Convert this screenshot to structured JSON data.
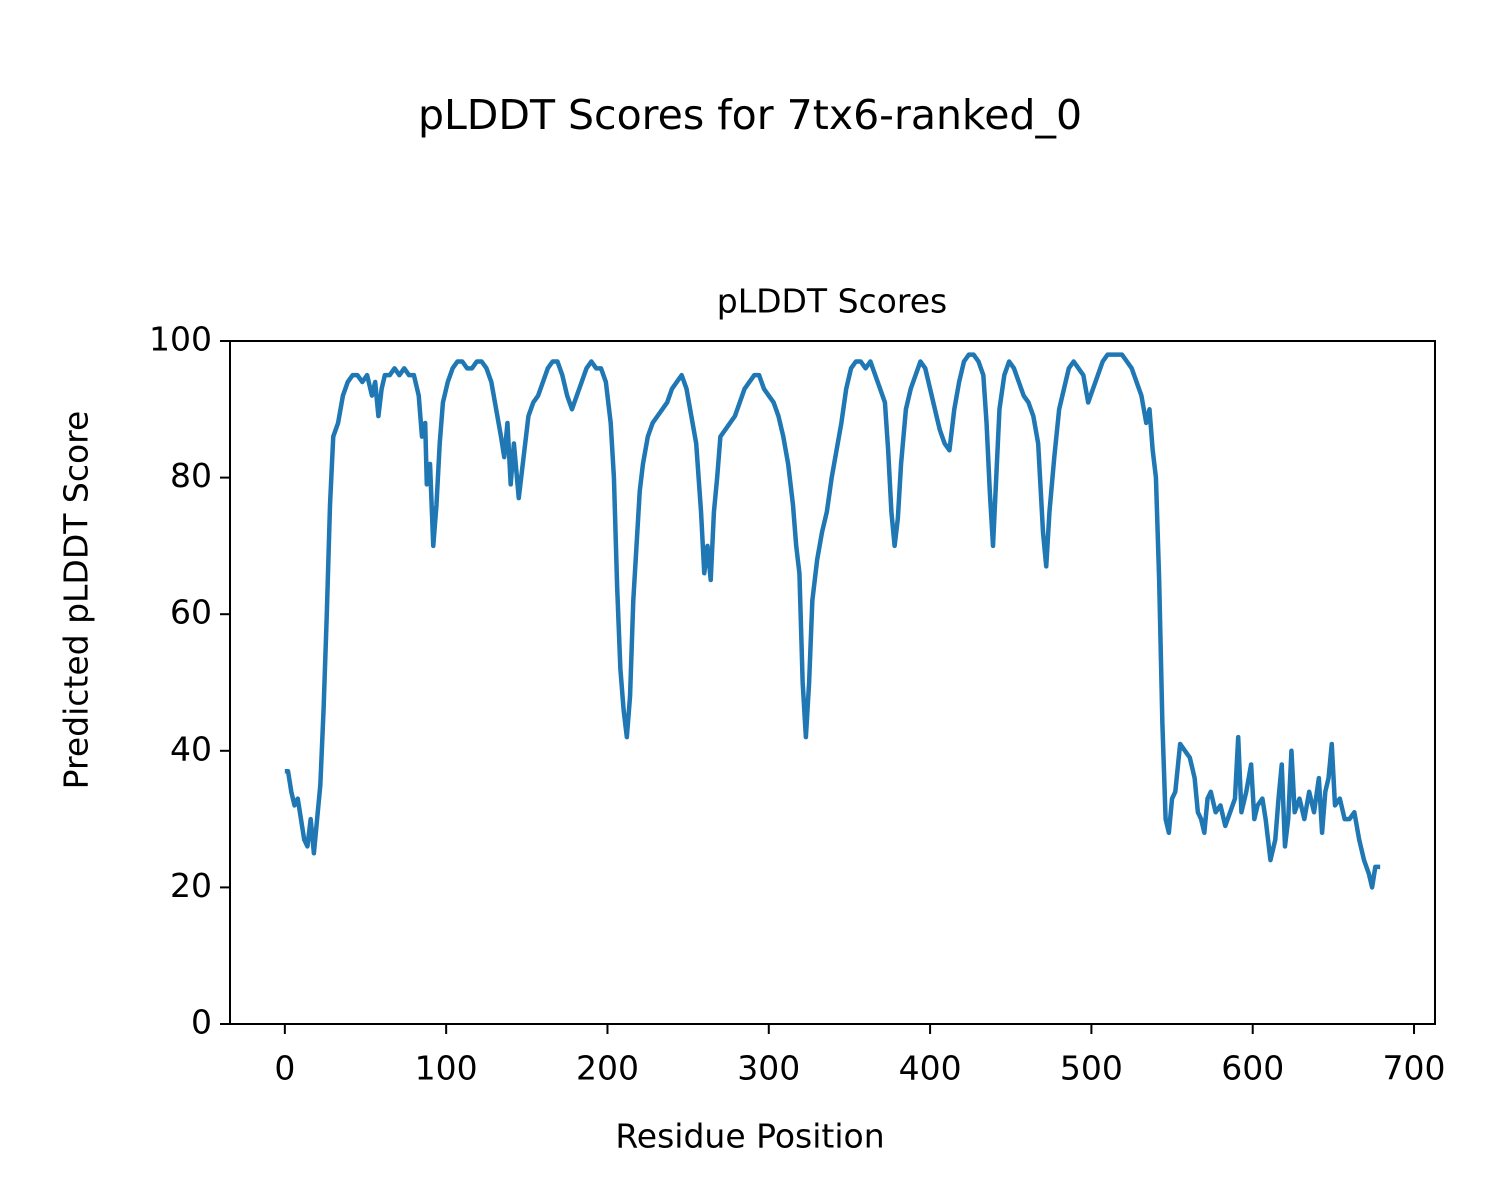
{
  "chart_data": {
    "type": "line",
    "suptitle": "pLDDT Scores for 7tx6-ranked_0",
    "title": "pLDDT Scores",
    "xlabel": "Residue Position",
    "ylabel": "Predicted pLDDT Score",
    "xlim": [
      -34,
      713
    ],
    "ylim": [
      0,
      100
    ],
    "xticks": [
      0,
      100,
      200,
      300,
      400,
      500,
      600,
      700
    ],
    "yticks": [
      0,
      20,
      40,
      60,
      80,
      100
    ],
    "grid": false,
    "series": [
      {
        "name": "pLDDT",
        "color": "#1f77b4",
        "x": [
          0,
          2,
          4,
          6,
          8,
          10,
          12,
          14,
          16,
          18,
          20,
          22,
          24,
          26,
          28,
          30,
          33,
          36,
          39,
          42,
          45,
          48,
          51,
          54,
          56,
          58,
          60,
          62,
          65,
          68,
          71,
          74,
          77,
          80,
          83,
          85,
          87,
          88,
          90,
          92,
          94,
          96,
          98,
          101,
          104,
          107,
          110,
          113,
          116,
          119,
          122,
          125,
          128,
          131,
          134,
          136,
          138,
          140,
          142,
          145,
          148,
          151,
          154,
          157,
          160,
          163,
          166,
          169,
          172,
          175,
          178,
          181,
          184,
          187,
          190,
          193,
          196,
          199,
          202,
          204,
          206,
          208,
          210,
          212,
          214,
          216,
          218,
          220,
          222,
          225,
          228,
          231,
          234,
          237,
          240,
          243,
          246,
          249,
          252,
          255,
          258,
          260,
          262,
          264,
          266,
          268,
          270,
          273,
          276,
          279,
          282,
          285,
          288,
          291,
          294,
          297,
          300,
          303,
          306,
          309,
          312,
          315,
          317,
          319,
          321,
          323,
          325,
          327,
          330,
          333,
          336,
          339,
          342,
          345,
          348,
          351,
          354,
          357,
          360,
          363,
          366,
          369,
          372,
          374,
          376,
          378,
          380,
          382,
          385,
          388,
          391,
          394,
          397,
          400,
          403,
          406,
          409,
          412,
          415,
          418,
          421,
          424,
          427,
          430,
          433,
          435,
          437,
          439,
          441,
          443,
          446,
          449,
          452,
          455,
          458,
          461,
          464,
          467,
          470,
          472,
          474,
          477,
          480,
          483,
          486,
          489,
          492,
          495,
          498,
          501,
          504,
          507,
          510,
          513,
          516,
          519,
          522,
          525,
          528,
          531,
          534,
          536,
          538,
          540,
          542,
          544,
          546,
          548,
          550,
          552,
          555,
          558,
          561,
          564,
          566,
          568,
          570,
          572,
          574,
          577,
          580,
          583,
          586,
          589,
          591,
          593,
          596,
          599,
          601,
          603,
          606,
          608,
          611,
          614,
          616,
          618,
          620,
          622,
          624,
          626,
          629,
          632,
          635,
          638,
          641,
          643,
          645,
          647,
          649,
          651,
          654,
          657,
          660,
          663,
          666,
          669,
          672,
          674,
          676,
          679
        ],
        "values": [
          37,
          37,
          34,
          32,
          33,
          30,
          27,
          26,
          30,
          25,
          30,
          35,
          46,
          60,
          76,
          86,
          88,
          92,
          94,
          95,
          95,
          94,
          95,
          92,
          94,
          89,
          93,
          95,
          95,
          96,
          95,
          96,
          95,
          95,
          92,
          86,
          88,
          79,
          82,
          70,
          76,
          85,
          91,
          94,
          96,
          97,
          97,
          96,
          96,
          97,
          97,
          96,
          94,
          90,
          86,
          83,
          88,
          79,
          85,
          77,
          83,
          89,
          91,
          92,
          94,
          96,
          97,
          97,
          95,
          92,
          90,
          92,
          94,
          96,
          97,
          96,
          96,
          94,
          88,
          80,
          64,
          52,
          46,
          42,
          48,
          62,
          70,
          78,
          82,
          86,
          88,
          89,
          90,
          91,
          93,
          94,
          95,
          93,
          89,
          85,
          75,
          66,
          70,
          65,
          75,
          80,
          86,
          87,
          88,
          89,
          91,
          93,
          94,
          95,
          95,
          93,
          92,
          91,
          89,
          86,
          82,
          76,
          70,
          66,
          50,
          42,
          50,
          62,
          68,
          72,
          75,
          80,
          84,
          88,
          93,
          96,
          97,
          97,
          96,
          97,
          95,
          93,
          91,
          84,
          75,
          70,
          74,
          82,
          90,
          93,
          95,
          97,
          96,
          93,
          90,
          87,
          85,
          84,
          90,
          94,
          97,
          98,
          98,
          97,
          95,
          88,
          78,
          70,
          80,
          90,
          95,
          97,
          96,
          94,
          92,
          91,
          89,
          85,
          72,
          67,
          75,
          83,
          90,
          93,
          96,
          97,
          96,
          95,
          91,
          93,
          95,
          97,
          98,
          98,
          98,
          98,
          97,
          96,
          94,
          92,
          88,
          90,
          84,
          80,
          65,
          44,
          30,
          28,
          33,
          34,
          41,
          40,
          39,
          36,
          31,
          30,
          28,
          33,
          34,
          31,
          32,
          29,
          31,
          33,
          42,
          31,
          34,
          38,
          30,
          32,
          33,
          30,
          24,
          27,
          33,
          38,
          26,
          30,
          40,
          31,
          33,
          30,
          34,
          31,
          36,
          28,
          34,
          36,
          41,
          32,
          33,
          30,
          30,
          31,
          27,
          24,
          22,
          20,
          23,
          23
        ]
      }
    ]
  }
}
